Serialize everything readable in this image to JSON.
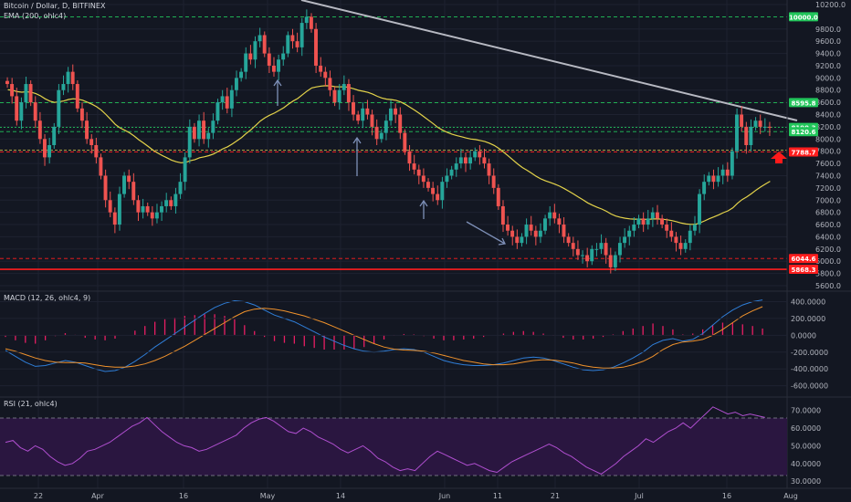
{
  "colors": {
    "background": "#131722",
    "grid": "#1e2230",
    "up": "#26a69a",
    "down": "#ef5350",
    "ema": "#e4d34a",
    "macd_line": "#2f7ed8",
    "signal_line": "#f0922c",
    "hist": "#e91e63",
    "rsi_line": "#b04fd0",
    "rsi_band": "#2a1640",
    "support": "#ff1e1e",
    "resistance": "#22c65b",
    "trendline": "#b7b9c2",
    "arrow": "#7e90b8",
    "red_arrow": "#ff1a1a"
  },
  "main_panel": {
    "title": "Bitcoin / Dollar, D, BITFINEX",
    "indicator": "EMA (200, ohlc4)"
  },
  "price_axis": {
    "ticks": [
      "10200.0",
      "9800.0",
      "9600.0",
      "9400.0",
      "9200.0",
      "9000.0",
      "8800.0",
      "8600.0",
      "8400.0",
      "8200.0",
      "8000.0",
      "7800.0",
      "7600.0",
      "7400.0",
      "7200.0",
      "7000.0",
      "6800.0",
      "6600.0",
      "6400.0",
      "6200.0",
      "6000.0",
      "5800.0",
      "5600.0"
    ],
    "range": [
      5500,
      10300
    ]
  },
  "price_tags": [
    {
      "text": "10000.0",
      "value": 10000,
      "kind": "resistance"
    },
    {
      "text": "8595.8",
      "value": 8595.8,
      "kind": "resistance"
    },
    {
      "text": "8190.3",
      "value": 8190.3,
      "kind": "price"
    },
    {
      "text": "8120.6",
      "value": 8120.6,
      "kind": "resistance"
    },
    {
      "text": "7788.7",
      "value": 7788.7,
      "kind": "support"
    },
    {
      "text": "6044.6",
      "value": 6044.6,
      "kind": "support"
    },
    {
      "text": "5868.3",
      "value": 5868.3,
      "kind": "support"
    }
  ],
  "time_axis": {
    "labels": [
      "22",
      "Apr",
      "16",
      "May",
      "14",
      "Jun",
      "11",
      "21",
      "Jul",
      "16",
      "Aug"
    ]
  },
  "macd_panel": {
    "title": "MACD (12, 26, ohlc4, 9)",
    "ticks": [
      "400.0000",
      "200.0000",
      "0.0000",
      "-200.0000",
      "-400.0000",
      "-600.0000"
    ],
    "range": [
      -680,
      470
    ]
  },
  "rsi_panel": {
    "title": "RSI (21, ohlc4)",
    "ticks": [
      "70.0000",
      "60.0000",
      "50.0000",
      "40.0000",
      "30.0000"
    ],
    "range": [
      27,
      75
    ],
    "bands": [
      65,
      35
    ]
  },
  "chart_data": [
    {
      "type": "candlestick",
      "title": "Bitcoin / Dollar, D, BITFINEX",
      "ylabel": "",
      "ylim": [
        5500,
        10300
      ],
      "series": [
        {
          "name": "price",
          "close": [
            8900,
            8700,
            8300,
            8600,
            8900,
            8600,
            8300,
            8000,
            7700,
            7900,
            8200,
            8800,
            8900,
            9100,
            8900,
            8500,
            8300,
            8000,
            7900,
            7700,
            7400,
            7000,
            6800,
            6600,
            7100,
            7400,
            7300,
            7000,
            6800,
            6900,
            6800,
            6700,
            6800,
            6900,
            7000,
            6900,
            7100,
            7300,
            7700,
            8200,
            8000,
            8300,
            8000,
            8100,
            8300,
            8600,
            8700,
            8500,
            8800,
            9000,
            9100,
            9400,
            9300,
            9600,
            9700,
            9400,
            9200,
            9100,
            9300,
            9400,
            9700,
            9600,
            9500,
            9900,
            10000,
            9800,
            9200,
            9100,
            9000,
            8800,
            8600,
            8800,
            8900,
            8600,
            8400,
            8300,
            8500,
            8400,
            8200,
            8000,
            8100,
            8300,
            8500,
            8400,
            8100,
            7800,
            7600,
            7500,
            7400,
            7300,
            7200,
            7100,
            7000,
            7300,
            7400,
            7500,
            7600,
            7700,
            7600,
            7700,
            7800,
            7700,
            7600,
            7400,
            7200,
            6900,
            6600,
            6500,
            6400,
            6300,
            6400,
            6600,
            6500,
            6400,
            6500,
            6700,
            6800,
            6700,
            6600,
            6400,
            6300,
            6200,
            6100,
            6100,
            6000,
            6200,
            6200,
            6300,
            6100,
            5900,
            6100,
            6300,
            6400,
            6500,
            6600,
            6700,
            6600,
            6700,
            6800,
            6700,
            6600,
            6500,
            6400,
            6300,
            6200,
            6300,
            6500,
            6600,
            7100,
            7300,
            7400,
            7300,
            7400,
            7500,
            7400,
            7800,
            8400,
            8200,
            7900,
            8200,
            8300,
            8200,
            8200,
            8190
          ]
        }
      ]
    },
    {
      "type": "line",
      "title": "MACD (12, 26, ohlc4, 9)",
      "ylim": [
        -680,
        470
      ],
      "series": [
        {
          "name": "MACD",
          "values": [
            -180,
            -250,
            -320,
            -370,
            -360,
            -330,
            -300,
            -320,
            -360,
            -400,
            -430,
            -420,
            -380,
            -310,
            -230,
            -140,
            -60,
            20,
            100,
            180,
            260,
            330,
            380,
            410,
            400,
            360,
            300,
            240,
            200,
            160,
            100,
            40,
            -20,
            -70,
            -120,
            -160,
            -190,
            -200,
            -190,
            -170,
            -160,
            -170,
            -200,
            -250,
            -300,
            -330,
            -350,
            -360,
            -360,
            -350,
            -330,
            -300,
            -270,
            -260,
            -270,
            -300,
            -340,
            -380,
            -410,
            -420,
            -410,
            -380,
            -330,
            -270,
            -200,
            -110,
            -60,
            -40,
            -70,
            -50,
            20,
            120,
            220,
            300,
            360,
            400,
            420
          ]
        },
        {
          "name": "Signal",
          "values": [
            -160,
            -190,
            -230,
            -270,
            -300,
            -320,
            -325,
            -325,
            -330,
            -350,
            -370,
            -380,
            -380,
            -365,
            -340,
            -300,
            -250,
            -190,
            -130,
            -60,
            10,
            80,
            150,
            220,
            280,
            310,
            320,
            310,
            290,
            260,
            230,
            190,
            150,
            100,
            50,
            0,
            -50,
            -100,
            -140,
            -165,
            -175,
            -180,
            -190,
            -210,
            -240,
            -270,
            -300,
            -320,
            -340,
            -350,
            -350,
            -340,
            -320,
            -300,
            -290,
            -295,
            -310,
            -330,
            -360,
            -380,
            -390,
            -390,
            -380,
            -350,
            -310,
            -250,
            -170,
            -110,
            -80,
            -70,
            -50,
            0,
            70,
            150,
            230,
            290,
            340
          ]
        }
      ],
      "histogram": [
        -20,
        -60,
        -90,
        -100,
        -60,
        -10,
        25,
        5,
        -30,
        -50,
        -60,
        -40,
        0,
        55,
        110,
        160,
        190,
        210,
        230,
        240,
        250,
        250,
        230,
        190,
        120,
        50,
        -20,
        -70,
        -90,
        -100,
        -130,
        -150,
        -170,
        -170,
        -170,
        -160,
        -140,
        -100,
        -50,
        -5,
        15,
        10,
        -10,
        -40,
        -60,
        -60,
        -50,
        -40,
        -20,
        0,
        20,
        40,
        50,
        40,
        20,
        -5,
        -30,
        -50,
        -50,
        -40,
        -20,
        10,
        50,
        80,
        110,
        140,
        110,
        70,
        10,
        20,
        70,
        120,
        150,
        150,
        130,
        110,
        80
      ]
    },
    {
      "type": "line",
      "title": "RSI (21, ohlc4)",
      "ylim": [
        27,
        75
      ],
      "series": [
        {
          "name": "RSI",
          "values": [
            52,
            53,
            49,
            47,
            50,
            48,
            44,
            41,
            39,
            40,
            43,
            47,
            48,
            50,
            52,
            55,
            58,
            61,
            63,
            66,
            62,
            58,
            55,
            52,
            50,
            49,
            47,
            48,
            50,
            52,
            54,
            56,
            60,
            63,
            65,
            66,
            64,
            61,
            58,
            57,
            60,
            58,
            55,
            53,
            51,
            48,
            46,
            48,
            50,
            47,
            43,
            41,
            38,
            36,
            37,
            36,
            40,
            44,
            47,
            45,
            43,
            41,
            39,
            40,
            38,
            36,
            35,
            38,
            41,
            43,
            45,
            47,
            49,
            51,
            49,
            46,
            44,
            41,
            38,
            36,
            34,
            37,
            40,
            44,
            47,
            50,
            54,
            52,
            55,
            58,
            60,
            63,
            60,
            64,
            68,
            72,
            70,
            68,
            69,
            67,
            68,
            67,
            66
          ]
        }
      ]
    }
  ]
}
